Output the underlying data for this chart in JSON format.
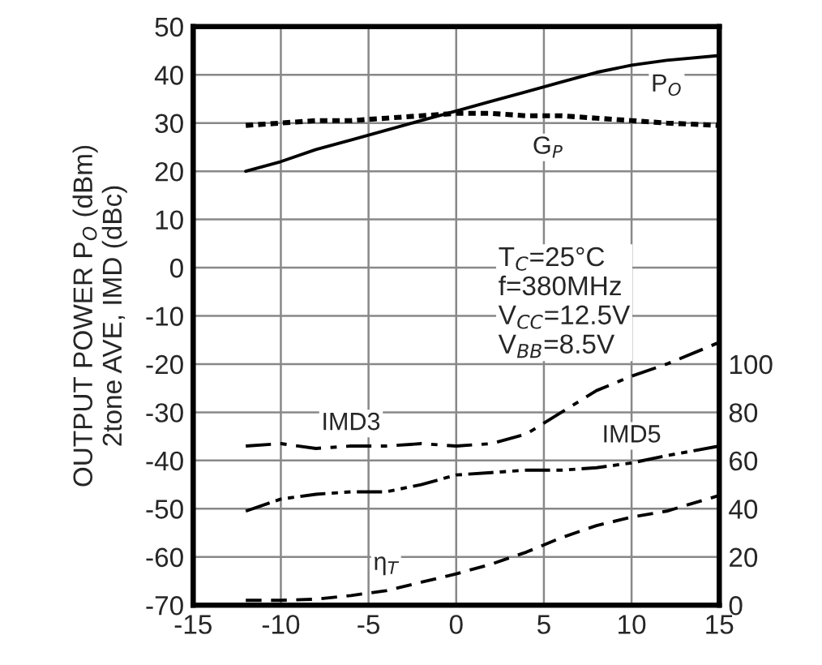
{
  "chart_data": {
    "type": "line",
    "ylabel": "OUTPUT POWER P$_{O}$ (dBm)\n2tone AVE, IMD (dBc)",
    "xlim": [
      -15,
      15
    ],
    "xticks": [
      -15,
      -10,
      -5,
      0,
      5,
      10,
      15
    ],
    "ylim": [
      -70,
      50
    ],
    "yticks": [
      -70,
      -60,
      -50,
      -40,
      -30,
      -20,
      -10,
      0,
      10,
      20,
      30,
      40,
      50
    ],
    "y2lim": [
      0,
      240
    ],
    "y2ticks": [
      0,
      20,
      40,
      60,
      80,
      100
    ],
    "grid": true,
    "legend": false,
    "marker": "none",
    "x": [
      -12,
      -10,
      -8,
      -6,
      -4,
      -2,
      0,
      2,
      4,
      6,
      8,
      10,
      12,
      15
    ],
    "series": [
      {
        "name": "P$_{O}$",
        "color": "#000000",
        "line_style": "solid",
        "values": [
          20,
          22,
          24.5,
          26.5,
          28.5,
          30.5,
          32.5,
          34.5,
          36.5,
          38.5,
          40.5,
          42,
          43,
          44
        ]
      },
      {
        "name": "G$_{P}$",
        "color": "#000000",
        "line_style": "dotted",
        "values": [
          29.5,
          30,
          30.5,
          30.5,
          31,
          31.5,
          32,
          32,
          31.5,
          31.5,
          31,
          30.5,
          30,
          29.5
        ]
      },
      {
        "name": "IMD3",
        "color": "#000000",
        "line_style": "dashdot",
        "values": [
          -37,
          -36.5,
          -37.5,
          -37,
          -37,
          -36.5,
          -37,
          -36.5,
          -34.5,
          -30,
          -25.5,
          -22.5,
          -20,
          -15.5
        ]
      },
      {
        "name": "IMD5",
        "color": "#000000",
        "line_style": "dashdotdot",
        "values": [
          -50.5,
          -48,
          -47,
          -46.5,
          -46.5,
          -45,
          -43,
          -42.5,
          -42,
          -42,
          -41.5,
          -40.5,
          -39,
          -37
        ]
      },
      {
        "name": "η$_{T}$",
        "color": "#000000",
        "line_style": "dashed",
        "axis": "y2",
        "values": [
          2,
          2,
          2.5,
          4,
          6,
          9.5,
          13,
          17,
          22,
          28,
          33,
          36.5,
          39,
          45.5
        ]
      }
    ],
    "annotations": [
      "T$_{C}$=25°C\nf=380MHz\nV$_{CC}$=12.5V\nV$_{BB}$=8.5V"
    ]
  }
}
